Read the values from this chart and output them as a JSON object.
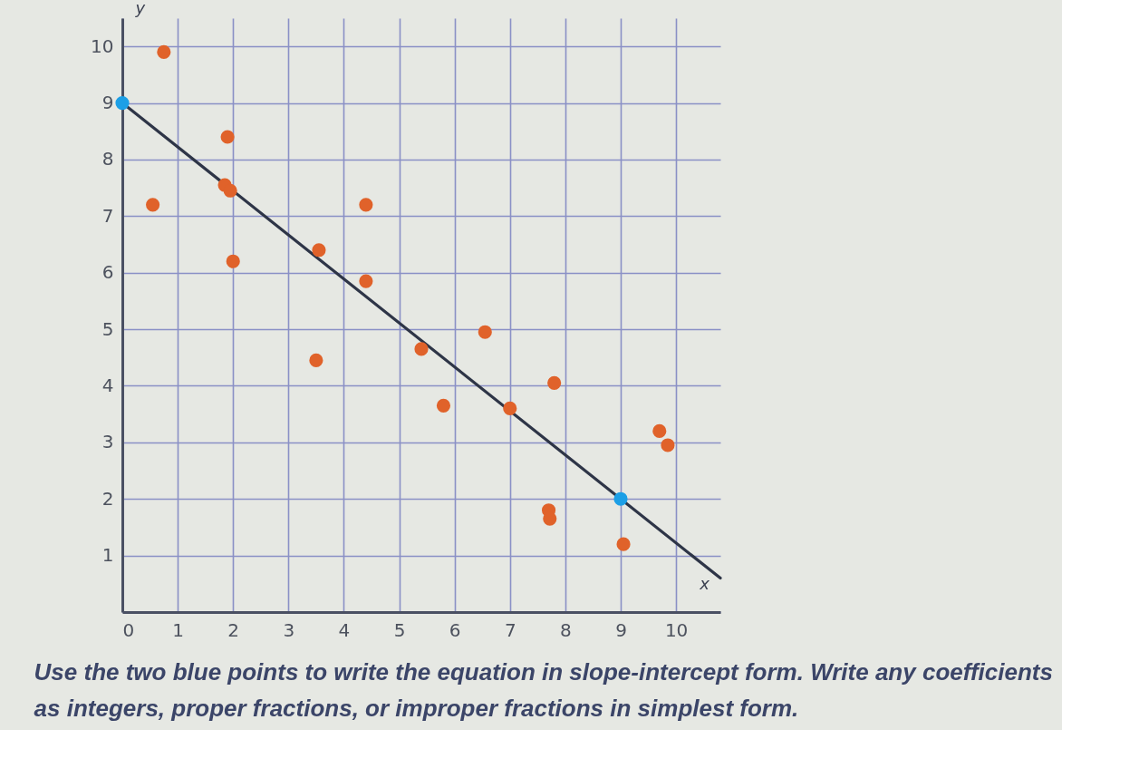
{
  "chart_data": {
    "type": "scatter",
    "xlabel": "x",
    "ylabel": "y",
    "xlim": [
      0,
      10.8
    ],
    "ylim": [
      0,
      10.5
    ],
    "xticks": [
      0,
      1,
      2,
      3,
      4,
      5,
      6,
      7,
      8,
      9,
      10
    ],
    "yticks": [
      {
        "value": 0,
        "label": null
      },
      1,
      2,
      3,
      4,
      5,
      6,
      7,
      8,
      9,
      10
    ],
    "grid": true,
    "marker": "circle",
    "series": [
      {
        "type": "line",
        "marker": "none",
        "line_style": "solid",
        "color": "#2e3547",
        "x": [
          0,
          10.8
        ],
        "values": [
          9,
          0.6
        ]
      },
      {
        "color": "#e0622a",
        "x": [
          0.75,
          0.55,
          1.9,
          1.85,
          1.95,
          2.0,
          3.55,
          4.4,
          4.4,
          6.55,
          5.4,
          3.5,
          5.8,
          7.0,
          7.8,
          9.7,
          9.85,
          7.7,
          7.72,
          9.05
        ],
        "values": [
          9.9,
          7.2,
          8.4,
          7.55,
          7.45,
          6.2,
          6.4,
          7.2,
          5.85,
          4.95,
          4.65,
          4.45,
          3.65,
          3.6,
          4.05,
          3.2,
          2.95,
          1.8,
          1.65,
          1.2
        ]
      },
      {
        "color": "#1c9fe6",
        "x": [
          0,
          9
        ],
        "values": [
          9,
          2
        ]
      }
    ],
    "annotations": [
      "Use the two blue points to write the equation in slope-intercept form. Write any coefficients as integers, proper fractions, or improper fractions in simplest form."
    ]
  }
}
